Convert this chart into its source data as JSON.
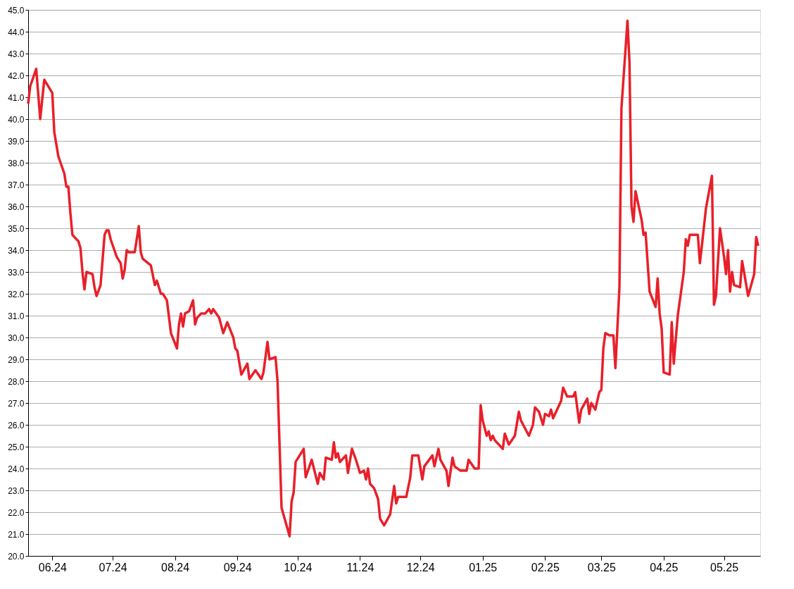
{
  "chart_data": {
    "type": "line",
    "x": [
      "2024-05-20",
      "2024-05-21",
      "2024-05-24",
      "2024-05-26",
      "2024-05-28",
      "2024-06-01",
      "2024-06-02",
      "2024-06-04",
      "2024-06-07",
      "2024-06-08",
      "2024-06-09",
      "2024-06-10",
      "2024-06-11",
      "2024-06-14",
      "2024-06-15",
      "2024-06-16",
      "2024-06-17",
      "2024-06-18",
      "2024-06-21",
      "2024-06-22",
      "2024-06-23",
      "2024-06-25",
      "2024-06-27",
      "2024-06-28",
      "2024-06-29",
      "2024-06-30",
      "2024-07-03",
      "2024-07-05",
      "2024-07-06",
      "2024-07-07",
      "2024-07-08",
      "2024-07-09",
      "2024-07-12",
      "2024-07-14",
      "2024-07-15",
      "2024-07-16",
      "2024-07-20",
      "2024-07-22",
      "2024-07-23",
      "2024-07-25",
      "2024-07-26",
      "2024-07-28",
      "2024-07-30",
      "2024-08-02",
      "2024-08-03",
      "2024-08-04",
      "2024-08-05",
      "2024-08-06",
      "2024-08-08",
      "2024-08-10",
      "2024-08-11",
      "2024-08-12",
      "2024-08-14",
      "2024-08-16",
      "2024-08-18",
      "2024-08-19",
      "2024-08-20",
      "2024-08-23",
      "2024-08-25",
      "2024-08-27",
      "2024-08-30",
      "2024-08-31",
      "2024-09-01",
      "2024-09-03",
      "2024-09-06",
      "2024-09-07",
      "2024-09-10",
      "2024-09-13",
      "2024-09-14",
      "2024-09-16",
      "2024-09-17",
      "2024-09-20",
      "2024-09-21",
      "2024-09-23",
      "2024-09-27",
      "2024-09-28",
      "2024-09-29",
      "2024-09-30",
      "2024-10-04",
      "2024-10-05",
      "2024-10-08",
      "2024-10-11",
      "2024-10-12",
      "2024-10-14",
      "2024-10-15",
      "2024-10-18",
      "2024-10-19",
      "2024-10-20",
      "2024-10-21",
      "2024-10-22",
      "2024-10-25",
      "2024-10-26",
      "2024-10-28",
      "2024-10-30",
      "2024-11-01",
      "2024-11-03",
      "2024-11-04",
      "2024-11-05",
      "2024-11-06",
      "2024-11-08",
      "2024-11-10",
      "2024-11-11",
      "2024-11-13",
      "2024-11-16",
      "2024-11-18",
      "2024-11-19",
      "2024-11-20",
      "2024-11-24",
      "2024-11-26",
      "2024-11-27",
      "2024-11-30",
      "2024-12-02",
      "2024-12-03",
      "2024-12-07",
      "2024-12-08",
      "2024-12-10",
      "2024-12-11",
      "2024-12-14",
      "2024-12-15",
      "2024-12-17",
      "2024-12-18",
      "2024-12-21",
      "2024-12-24",
      "2024-12-25",
      "2024-12-28",
      "2024-12-30",
      "2024-12-31",
      "2025-01-01",
      "2025-01-03",
      "2025-01-04",
      "2025-01-05",
      "2025-01-06",
      "2025-01-07",
      "2025-01-11",
      "2025-01-12",
      "2025-01-14",
      "2025-01-17",
      "2025-01-19",
      "2025-01-20",
      "2025-01-24",
      "2025-01-26",
      "2025-01-27",
      "2025-01-29",
      "2025-01-31",
      "2025-02-01",
      "2025-02-03",
      "2025-02-04",
      "2025-02-05",
      "2025-02-09",
      "2025-02-10",
      "2025-02-12",
      "2025-02-15",
      "2025-02-16",
      "2025-02-18",
      "2025-02-19",
      "2025-02-22",
      "2025-02-23",
      "2025-02-24",
      "2025-02-26",
      "2025-02-28",
      "2025-03-01",
      "2025-03-02",
      "2025-03-03",
      "2025-03-05",
      "2025-03-07",
      "2025-03-08",
      "2025-03-10",
      "2025-03-11",
      "2025-03-14",
      "2025-03-15",
      "2025-03-16",
      "2025-03-17",
      "2025-03-18",
      "2025-03-21",
      "2025-03-22",
      "2025-03-23",
      "2025-03-25",
      "2025-03-28",
      "2025-03-29",
      "2025-03-30",
      "2025-03-31",
      "2025-04-01",
      "2025-04-04",
      "2025-04-05",
      "2025-04-06",
      "2025-04-08",
      "2025-04-11",
      "2025-04-12",
      "2025-04-13",
      "2025-04-14",
      "2025-04-18",
      "2025-04-19",
      "2025-04-20",
      "2025-04-22",
      "2025-04-25",
      "2025-04-26",
      "2025-04-27",
      "2025-04-29",
      "2025-05-01",
      "2025-05-02",
      "2025-05-03",
      "2025-05-04",
      "2025-05-05",
      "2025-05-06",
      "2025-05-09",
      "2025-05-10",
      "2025-05-13",
      "2025-05-16",
      "2025-05-17",
      "2025-05-18"
    ],
    "series": [
      {
        "color": "#e8202a",
        "values": [
          40.7,
          41.5,
          42.3,
          40.0,
          41.8,
          41.2,
          39.4,
          38.3,
          37.5,
          36.9,
          36.9,
          35.7,
          34.7,
          34.4,
          34.1,
          33.0,
          32.2,
          33.0,
          32.9,
          32.3,
          31.9,
          32.4,
          34.7,
          34.9,
          34.9,
          34.5,
          33.7,
          33.4,
          32.7,
          33.1,
          34.0,
          33.9,
          33.9,
          35.1,
          33.9,
          33.6,
          33.3,
          32.4,
          32.6,
          32.0,
          32.0,
          31.7,
          30.2,
          29.5,
          30.6,
          31.1,
          30.5,
          31.1,
          31.2,
          31.7,
          30.6,
          30.9,
          31.1,
          31.1,
          31.3,
          31.1,
          31.3,
          30.9,
          30.2,
          30.7,
          30.0,
          29.5,
          29.4,
          28.3,
          28.8,
          28.1,
          28.5,
          28.1,
          28.4,
          29.8,
          29.0,
          29.1,
          28.0,
          22.2,
          20.9,
          22.5,
          22.9,
          24.3,
          24.9,
          23.6,
          24.4,
          23.3,
          23.8,
          23.5,
          24.5,
          24.4,
          25.2,
          24.5,
          24.7,
          24.3,
          24.6,
          23.8,
          24.9,
          24.4,
          23.8,
          23.9,
          23.5,
          24.0,
          23.3,
          23.1,
          22.6,
          21.7,
          21.4,
          21.9,
          23.2,
          22.4,
          22.7,
          22.7,
          23.6,
          24.6,
          24.6,
          23.5,
          24.1,
          24.6,
          24.1,
          24.9,
          24.4,
          23.9,
          23.2,
          24.5,
          24.1,
          23.9,
          23.9,
          24.4,
          24.0,
          24.0,
          26.9,
          26.2,
          25.5,
          25.7,
          25.3,
          25.5,
          25.3,
          24.9,
          25.6,
          25.1,
          25.5,
          26.6,
          26.2,
          25.5,
          26.0,
          26.8,
          26.6,
          26.0,
          26.5,
          26.4,
          26.7,
          26.3,
          27.1,
          27.7,
          27.3,
          27.3,
          27.5,
          26.1,
          26.7,
          27.2,
          26.5,
          27.0,
          26.7,
          27.5,
          27.6,
          29.5,
          30.2,
          30.1,
          30.1,
          28.6,
          32.3,
          40.5,
          44.5,
          42.6,
          36.0,
          35.3,
          36.7,
          35.4,
          34.7,
          34.8,
          32.1,
          31.4,
          32.7,
          31.1,
          30.4,
          28.4,
          28.3,
          30.7,
          28.8,
          31.0,
          33.0,
          34.5,
          34.2,
          34.7,
          34.7,
          33.4,
          34.2,
          35.9,
          37.4,
          31.5,
          31.9,
          35.0,
          33.7,
          32.9,
          34.0,
          32.1,
          33.0,
          32.4,
          32.3,
          33.5,
          31.9,
          32.9,
          34.6,
          34.2
        ]
      }
    ],
    "xlim": [
      "2024-05-20",
      "2025-05-19"
    ],
    "xticks": [
      {
        "value": "2024-06-01",
        "label": "06.24"
      },
      {
        "value": "2024-07-01",
        "label": "07.24"
      },
      {
        "value": "2024-08-01",
        "label": "08.24"
      },
      {
        "value": "2024-09-01",
        "label": "09.24"
      },
      {
        "value": "2024-10-01",
        "label": "10.24"
      },
      {
        "value": "2024-11-01",
        "label": "11.24"
      },
      {
        "value": "2024-12-01",
        "label": "12.24"
      },
      {
        "value": "2025-01-01",
        "label": "01.25"
      },
      {
        "value": "2025-02-01",
        "label": "02.25"
      },
      {
        "value": "2025-03-01",
        "label": "03.25"
      },
      {
        "value": "2025-04-01",
        "label": "04.25"
      },
      {
        "value": "2025-05-01",
        "label": "05.25"
      }
    ],
    "ylim": [
      20,
      45
    ],
    "yticks": [
      {
        "value": 20,
        "label": "20.0"
      },
      {
        "value": 21,
        "label": "21.0"
      },
      {
        "value": 22,
        "label": "22.0"
      },
      {
        "value": 23,
        "label": "23.0"
      },
      {
        "value": 24,
        "label": "24.0"
      },
      {
        "value": 25,
        "label": "25.0"
      },
      {
        "value": 26,
        "label": "26.0"
      },
      {
        "value": 27,
        "label": "27.0"
      },
      {
        "value": 28,
        "label": "28.0"
      },
      {
        "value": 29,
        "label": "29.0"
      },
      {
        "value": 30,
        "label": "30.0"
      },
      {
        "value": 31,
        "label": "31.0"
      },
      {
        "value": 32,
        "label": "32.0"
      },
      {
        "value": 33,
        "label": "33.0"
      },
      {
        "value": 34,
        "label": "34.0"
      },
      {
        "value": 35,
        "label": "35.0"
      },
      {
        "value": 36,
        "label": "36.0"
      },
      {
        "value": 37,
        "label": "37.0"
      },
      {
        "value": 38,
        "label": "38.0"
      },
      {
        "value": 39,
        "label": "39.0"
      },
      {
        "value": 40,
        "label": "40.0"
      },
      {
        "value": 41,
        "label": "41.0"
      },
      {
        "value": 42,
        "label": "42.0"
      },
      {
        "value": 43,
        "label": "43.0"
      },
      {
        "value": 44,
        "label": "44.0"
      },
      {
        "value": 45,
        "label": "45.0"
      }
    ],
    "grid": "y",
    "legend": false,
    "marker": "none",
    "line_style": "solid"
  }
}
